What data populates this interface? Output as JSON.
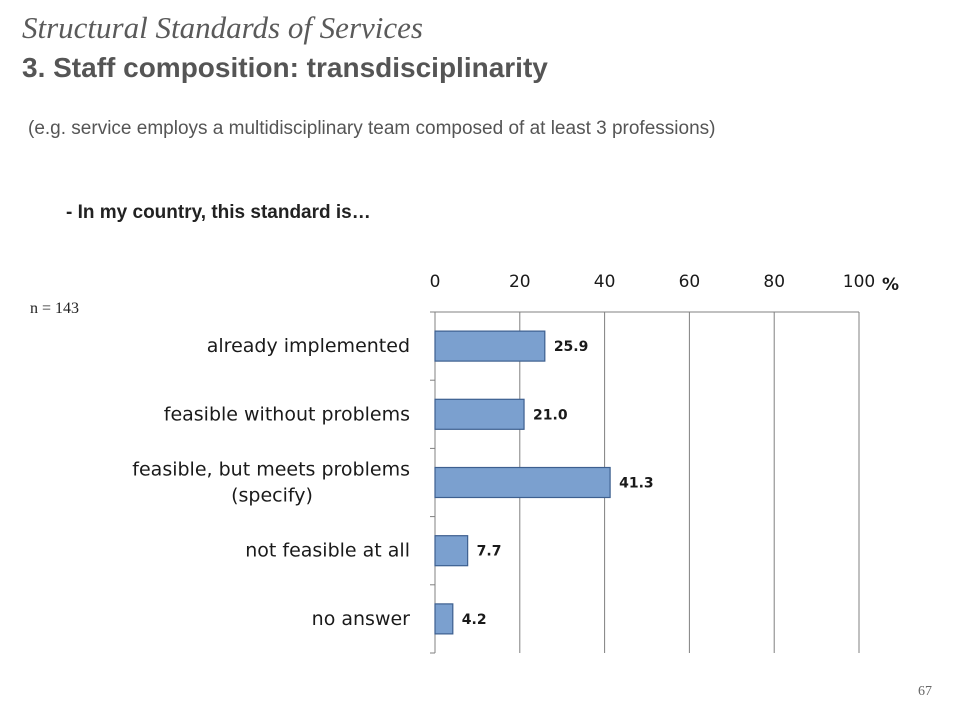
{
  "title": "Structural Standards of Services",
  "subtitle": "3. Staff composition: transdisciplinarity",
  "example_note": "(e.g. service employs a multidisciplinary team composed of at least 3 professions)",
  "question": "- In my country, this standard is…",
  "sample_size": "n = 143",
  "page_number": "67",
  "colors": {
    "bar_fill": "#7ba0cf",
    "bar_stroke": "#3d5f8f",
    "grid": "#808080"
  },
  "chart_data": {
    "type": "bar",
    "orientation": "horizontal",
    "x_axis_position": "top",
    "unit": "%",
    "xlim": [
      0,
      100
    ],
    "ticks": [
      0,
      20,
      40,
      60,
      80,
      100
    ],
    "grid": true,
    "categories": [
      [
        "already implemented"
      ],
      [
        "feasible without problems"
      ],
      [
        "feasible, but meets problems",
        "(specify)"
      ],
      [
        "not feasible at all"
      ],
      [
        "no answer"
      ]
    ],
    "values": [
      25.9,
      21.0,
      41.3,
      7.7,
      4.2
    ],
    "value_labels": [
      "25.9",
      "21.0",
      "41.3",
      "7.7",
      "4.2"
    ]
  }
}
